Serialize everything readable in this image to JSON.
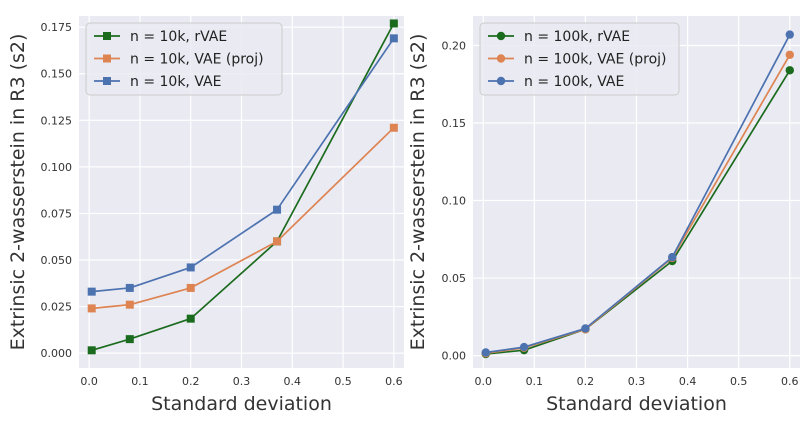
{
  "colors": {
    "plot_bg": "#eaeaf2",
    "grid": "#ffffff",
    "rvae": "#1b6b1e",
    "vae_proj": "#dd8452",
    "vae": "#4c72b0",
    "text": "#333333"
  },
  "chart_data": [
    {
      "type": "line",
      "title": "",
      "xlabel": "Standard deviation",
      "ylabel": "Extrinsic 2-wasserstein in R3 (s2)",
      "xlim": [
        -0.02,
        0.62
      ],
      "ylim": [
        -0.008,
        0.181
      ],
      "grid": true,
      "legend": "top-left",
      "marker": "square",
      "x_ticks": [
        0.0,
        0.1,
        0.2,
        0.3,
        0.4,
        0.5,
        0.6
      ],
      "x_tick_labels": [
        "0.0",
        "0.1",
        "0.2",
        "0.3",
        "0.4",
        "0.5",
        "0.6"
      ],
      "y_ticks": [
        0.0,
        0.025,
        0.05,
        0.075,
        0.1,
        0.125,
        0.15,
        0.175
      ],
      "y_tick_labels": [
        "0.000",
        "0.025",
        "0.050",
        "0.075",
        "0.100",
        "0.125",
        "0.150",
        "0.175"
      ],
      "x": [
        0.005,
        0.08,
        0.2,
        0.37,
        0.6
      ],
      "series": [
        {
          "name": "n = 10k, rVAE",
          "color_key": "rvae",
          "values": [
            0.0015,
            0.0075,
            0.0185,
            0.06,
            0.177
          ]
        },
        {
          "name": "n = 10k, VAE (proj)",
          "color_key": "vae_proj",
          "values": [
            0.024,
            0.026,
            0.035,
            0.06,
            0.121
          ]
        },
        {
          "name": "n = 10k, VAE",
          "color_key": "vae",
          "values": [
            0.033,
            0.035,
            0.046,
            0.077,
            0.169
          ]
        }
      ]
    },
    {
      "type": "line",
      "title": "",
      "xlabel": "Standard deviation",
      "ylabel": "Extrinsic 2-wasserstein in R3 (s2)",
      "xlim": [
        -0.02,
        0.62
      ],
      "ylim": [
        -0.008,
        0.219
      ],
      "grid": true,
      "legend": "top-left",
      "marker": "circle",
      "x_ticks": [
        0.0,
        0.1,
        0.2,
        0.3,
        0.4,
        0.5,
        0.6
      ],
      "x_tick_labels": [
        "0.0",
        "0.1",
        "0.2",
        "0.3",
        "0.4",
        "0.5",
        "0.6"
      ],
      "y_ticks": [
        0.0,
        0.05,
        0.1,
        0.15,
        0.2
      ],
      "y_tick_labels": [
        "0.00",
        "0.05",
        "0.10",
        "0.15",
        "0.20"
      ],
      "x": [
        0.005,
        0.08,
        0.2,
        0.37,
        0.6
      ],
      "series": [
        {
          "name": "n = 100k, rVAE",
          "color_key": "rvae",
          "values": [
            0.001,
            0.0035,
            0.017,
            0.061,
            0.184
          ]
        },
        {
          "name": "n = 100k, VAE (proj)",
          "color_key": "vae_proj",
          "values": [
            0.0015,
            0.005,
            0.017,
            0.063,
            0.194
          ]
        },
        {
          "name": "n = 100k, VAE",
          "color_key": "vae",
          "values": [
            0.002,
            0.0055,
            0.0175,
            0.0635,
            0.207
          ]
        }
      ]
    }
  ]
}
